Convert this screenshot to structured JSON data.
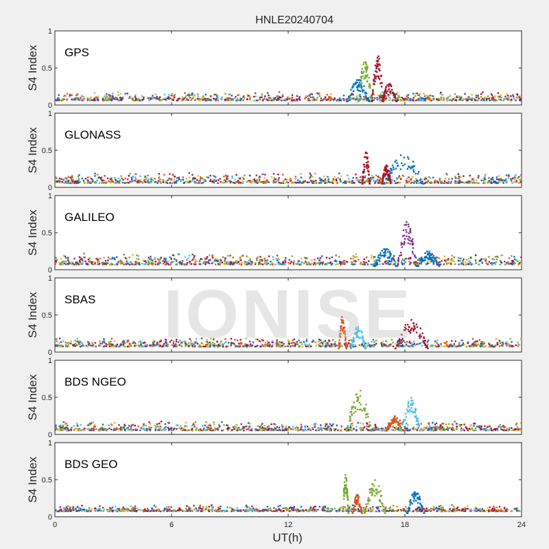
{
  "figure": {
    "title": "HNLE20240704",
    "xlabel": "UT(h)",
    "ylabel": "S4 Index",
    "watermark": "IONISE",
    "background": "#f0f0f0",
    "axes_background": "#ffffff"
  },
  "palette": [
    "#0072bd",
    "#d95319",
    "#edb120",
    "#7e2f8e",
    "#77ac30",
    "#4dbeee",
    "#a2142f"
  ],
  "chart_data": [
    {
      "type": "scatter",
      "panel_label": "GPS",
      "xlabel": "",
      "ylabel": "S4 Index",
      "xlim": [
        0,
        24
      ],
      "ylim": [
        0,
        1
      ],
      "xticks": [
        0,
        6,
        12,
        18,
        24
      ],
      "yticks": [
        0,
        0.5,
        1
      ],
      "yticklabels": [
        "0",
        "0.5",
        "1"
      ],
      "grid": false,
      "baseline_range": [
        0.03,
        0.18
      ],
      "features": [
        {
          "x_range": [
            15.6,
            16.3
          ],
          "peak": 0.6,
          "color": "#77ac30"
        },
        {
          "x_range": [
            16.3,
            16.9
          ],
          "peak": 0.68,
          "color": "#a2142f"
        },
        {
          "x_range": [
            15.0,
            16.2
          ],
          "peak": 0.35,
          "color": "#0072bd"
        },
        {
          "x_range": [
            16.8,
            17.6
          ],
          "peak": 0.3,
          "color": "#a2142f"
        }
      ]
    },
    {
      "type": "scatter",
      "panel_label": "GLONASS",
      "xlabel": "",
      "ylabel": "S4 Index",
      "xlim": [
        0,
        24
      ],
      "ylim": [
        0,
        1
      ],
      "xticks": [
        0,
        6,
        12,
        18,
        24
      ],
      "yticks": [
        0,
        0.5,
        1
      ],
      "yticklabels": [
        "0",
        "0.5",
        "1"
      ],
      "grid": false,
      "baseline_range": [
        0.02,
        0.2
      ],
      "features": [
        {
          "x_range": [
            15.8,
            16.2
          ],
          "peak": 0.5,
          "color": "#a2142f"
        },
        {
          "x_range": [
            16.9,
            19.0
          ],
          "peak": 0.45,
          "color": "#0072bd"
        },
        {
          "x_range": [
            16.8,
            17.3
          ],
          "peak": 0.3,
          "color": "#a2142f"
        }
      ]
    },
    {
      "type": "scatter",
      "panel_label": "GALILEO",
      "xlabel": "",
      "ylabel": "S4 Index",
      "xlim": [
        0,
        24
      ],
      "ylim": [
        0,
        1
      ],
      "xticks": [
        0,
        6,
        12,
        18,
        24
      ],
      "yticks": [
        0,
        0.5,
        1
      ],
      "yticklabels": [
        "0",
        "0.5",
        "1"
      ],
      "grid": false,
      "baseline_range": [
        0.03,
        0.22
      ],
      "features": [
        {
          "x_range": [
            17.6,
            18.6
          ],
          "peak": 0.65,
          "color": "#7e2f8e"
        },
        {
          "x_range": [
            16.4,
            17.6
          ],
          "peak": 0.3,
          "color": "#0072bd"
        },
        {
          "x_range": [
            18.6,
            19.8
          ],
          "peak": 0.25,
          "color": "#0072bd"
        }
      ]
    },
    {
      "type": "scatter",
      "panel_label": "SBAS",
      "xlabel": "",
      "ylabel": "S4 Index",
      "xlim": [
        0,
        24
      ],
      "ylim": [
        0,
        1
      ],
      "xticks": [
        0,
        6,
        12,
        18,
        24
      ],
      "yticks": [
        0,
        0.5,
        1
      ],
      "yticklabels": [
        "0",
        "0.5",
        "1"
      ],
      "grid": false,
      "baseline_range": [
        0.04,
        0.2
      ],
      "features": [
        {
          "x_range": [
            17.5,
            19.2
          ],
          "peak": 0.45,
          "color": "#a2142f"
        },
        {
          "x_range": [
            15.2,
            16.0
          ],
          "peak": 0.35,
          "color": "#4dbeee"
        },
        {
          "x_range": [
            14.6,
            15.0
          ],
          "peak": 0.5,
          "color": "#d95319"
        }
      ]
    },
    {
      "type": "scatter",
      "panel_label": "BDS NGEO",
      "xlabel": "",
      "ylabel": "S4 Index",
      "xlim": [
        0,
        24
      ],
      "ylim": [
        0,
        1
      ],
      "xticks": [
        0,
        6,
        12,
        18,
        24
      ],
      "yticks": [
        0,
        0.5,
        1
      ],
      "yticklabels": [
        "0",
        "0.5",
        "1"
      ],
      "grid": false,
      "baseline_range": [
        0.02,
        0.18
      ],
      "features": [
        {
          "x_range": [
            15.0,
            16.3
          ],
          "peak": 0.6,
          "color": "#77ac30"
        },
        {
          "x_range": [
            17.8,
            18.8
          ],
          "peak": 0.5,
          "color": "#4dbeee"
        },
        {
          "x_range": [
            17.0,
            18.0
          ],
          "peak": 0.25,
          "color": "#d95319"
        }
      ]
    },
    {
      "type": "scatter",
      "panel_label": "BDS GEO",
      "xlabel": "UT(h)",
      "ylabel": "S4 Index",
      "xlim": [
        0,
        24
      ],
      "ylim": [
        0,
        1
      ],
      "xticks": [
        0,
        6,
        12,
        18,
        24
      ],
      "yticks": [
        0,
        0.5,
        1
      ],
      "xticklabels": [
        "0",
        "6",
        "12",
        "18",
        "24"
      ],
      "yticklabels": [
        "0",
        "0.5",
        "1"
      ],
      "grid": false,
      "baseline_range": [
        0.05,
        0.16
      ],
      "features": [
        {
          "x_range": [
            14.8,
            15.1
          ],
          "peak": 0.6,
          "color": "#77ac30"
        },
        {
          "x_range": [
            15.9,
            17.0
          ],
          "peak": 0.5,
          "color": "#77ac30"
        },
        {
          "x_range": [
            18.1,
            19.0
          ],
          "peak": 0.35,
          "color": "#0072bd"
        },
        {
          "x_range": [
            15.3,
            15.8
          ],
          "peak": 0.3,
          "color": "#d95319"
        }
      ]
    }
  ]
}
